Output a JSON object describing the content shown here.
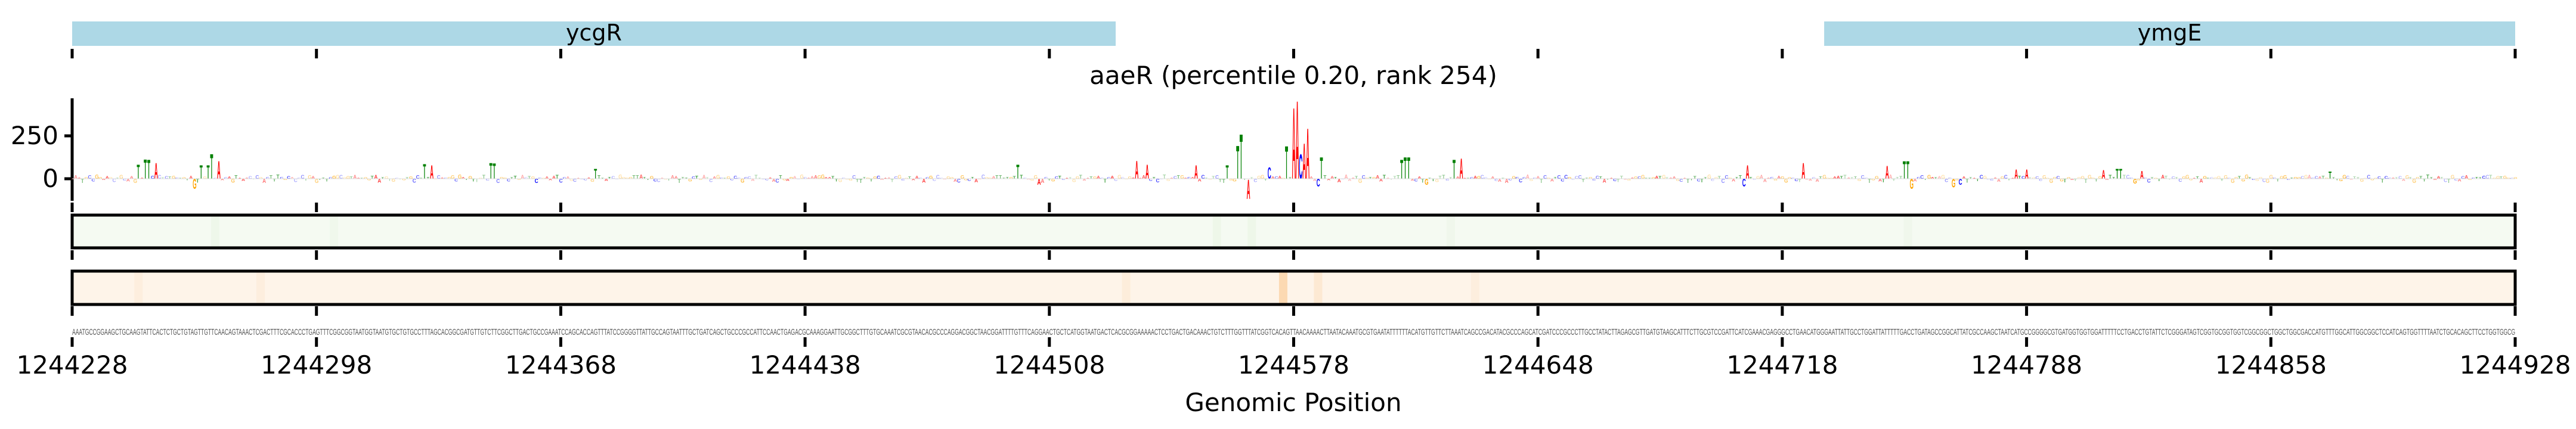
{
  "colors": {
    "A": "#ff0000",
    "C": "#0000ff",
    "G": "#ffa500",
    "T": "#008000",
    "gene": "#add8e6",
    "heatmap_1_base": "#f5faf2",
    "heatmap_1_strong": "#e3f2dd",
    "heatmap_2_base": "#fef4e9",
    "heatmap_2_strong": "#fcd9b2"
  },
  "genes": [
    {
      "name": "ycgR",
      "start": 1244228,
      "end": 1244527
    },
    {
      "name": "ymgE",
      "start": 1244730,
      "end": 1244928
    }
  ],
  "chart_data": {
    "type": "sequence-logo",
    "title": "aaeR (percentile 0.20, rank 254)",
    "xlabel": "Genomic Position",
    "ylabel": "",
    "xlim": [
      1244228,
      1244928
    ],
    "xticks": [
      "1244228",
      "1244298",
      "1244368",
      "1244438",
      "1244508",
      "1244578",
      "1244648",
      "1244718",
      "1244788",
      "1244858",
      "1244928"
    ],
    "ylim": [
      -105,
      480
    ],
    "yticks": [
      "0",
      "250"
    ],
    "sequence": "AAATGCCGGAAGCTGCAAGTATTCACTCTGCTGTAGTTGTTCAACAGTAAACTCGACTTTCGCACCCTGAGTTTCGGCGGTAATGGTAATGTGCTGTGCCTTTAGCACGGCGATGTTGTCTTCGGCTTGACTGCCGAAATCCAGCACCAGTTTATCCGGGGTTATTGCCAGTAATTTGCTGATCAGCTGCCCGCCATTCCAACTGAGACGCAAAGGAATTGCGGCTTTGTGCAAATCGCGTAACACGCCCAGGACGGCTAACGGATTTTGTTTCAGGAACTGCTCATGGTAATGACTCACGCGGAAAAACTCCTGACTGACAAACTGTCTTTGGTTTATCGGTCACAGTTAACAAAACTTAATACAAATGCGTGAATATTTTTTACATGTTGTTCTTAAATCAGCCGACATACGCCCAGCATCGATCCCGCCCTTGCCTATACTTAGAGCGTTGATGTAAGCATTTCTTGCGTCCGATTCATCGAAACGAGGGCCTGAACATGGGAATTATTGCCTGGATTATTTTTGACCTGATAGCCGGCATTATCGCCAAGCTAATCATGCCGGGGCGTGATGGTGGTGGATTTTTCCTGACCTGTATTCTCGGGATAGTCGGTGCGGTGGTCGGCGGCTGGCTGGCGACCATGTTTGGCATTGGCGGCTCCATCAGTGGTTTTAATCTGCACAGCTTCCTGGTGGCG",
    "peaks": [
      {
        "pos": 1244247,
        "base": "T",
        "value": 85
      },
      {
        "pos": 1244249,
        "base": "T",
        "value": 116
      },
      {
        "pos": 1244250,
        "base": "T",
        "value": 113
      },
      {
        "pos": 1244252,
        "base": "A",
        "value": 95
      },
      {
        "pos": 1244263,
        "base": "G",
        "value": -60
      },
      {
        "pos": 1244265,
        "base": "T",
        "value": 82
      },
      {
        "pos": 1244267,
        "base": "T",
        "value": 82
      },
      {
        "pos": 1244268,
        "base": "T",
        "value": 148
      },
      {
        "pos": 1244270,
        "base": "A",
        "value": 106
      },
      {
        "pos": 1244329,
        "base": "T",
        "value": 88
      },
      {
        "pos": 1244331,
        "base": "A",
        "value": 82
      },
      {
        "pos": 1244348,
        "base": "T",
        "value": 95
      },
      {
        "pos": 1244349,
        "base": "T",
        "value": 92
      },
      {
        "pos": 1244361,
        "base": "C",
        "value": -25
      },
      {
        "pos": 1244378,
        "base": "T",
        "value": 60
      },
      {
        "pos": 1244499,
        "base": "T",
        "value": 85
      },
      {
        "pos": 1244505,
        "base": "A",
        "value": -35
      },
      {
        "pos": 1244533,
        "base": "A",
        "value": 109
      },
      {
        "pos": 1244536,
        "base": "A",
        "value": 85
      },
      {
        "pos": 1244550,
        "base": "A",
        "value": 82
      },
      {
        "pos": 1244559,
        "base": "T",
        "value": 82
      },
      {
        "pos": 1244562,
        "base": "T",
        "value": 200
      },
      {
        "pos": 1244563,
        "base": "T",
        "value": 271
      },
      {
        "pos": 1244565,
        "base": "A",
        "value": -116
      },
      {
        "pos": 1244571,
        "base": "C",
        "value": 70
      },
      {
        "pos": 1244576,
        "base": "T",
        "value": 197
      },
      {
        "pos": 1244578,
        "base": "A",
        "value": 430
      },
      {
        "pos": 1244579,
        "base": "A",
        "value": 472
      },
      {
        "pos": 1244580,
        "base": "C",
        "value": 150
      },
      {
        "pos": 1244581,
        "base": "A",
        "value": 215
      },
      {
        "pos": 1244582,
        "base": "A",
        "value": 306
      },
      {
        "pos": 1244585,
        "base": "C",
        "value": -46
      },
      {
        "pos": 1244586,
        "base": "T",
        "value": 130
      },
      {
        "pos": 1244609,
        "base": "T",
        "value": 113
      },
      {
        "pos": 1244610,
        "base": "T",
        "value": 130
      },
      {
        "pos": 1244611,
        "base": "T",
        "value": 130
      },
      {
        "pos": 1244616,
        "base": "G",
        "value": -35
      },
      {
        "pos": 1244624,
        "base": "T",
        "value": 113
      },
      {
        "pos": 1244626,
        "base": "A",
        "value": 123
      },
      {
        "pos": 1244707,
        "base": "C",
        "value": -46
      },
      {
        "pos": 1244708,
        "base": "A",
        "value": 82
      },
      {
        "pos": 1244724,
        "base": "A",
        "value": 95
      },
      {
        "pos": 1244748,
        "base": "A",
        "value": 78
      },
      {
        "pos": 1244753,
        "base": "T",
        "value": 106
      },
      {
        "pos": 1244754,
        "base": "T",
        "value": 106
      },
      {
        "pos": 1244755,
        "base": "G",
        "value": -60
      },
      {
        "pos": 1244767,
        "base": "G",
        "value": -50
      },
      {
        "pos": 1244769,
        "base": "C",
        "value": -35
      },
      {
        "pos": 1244785,
        "base": "A",
        "value": 56
      },
      {
        "pos": 1244788,
        "base": "A",
        "value": 56
      },
      {
        "pos": 1244810,
        "base": "A",
        "value": 53
      },
      {
        "pos": 1244814,
        "base": "T",
        "value": 60
      },
      {
        "pos": 1244815,
        "base": "T",
        "value": 60
      },
      {
        "pos": 1244819,
        "base": "G",
        "value": -28
      },
      {
        "pos": 1244821,
        "base": "A",
        "value": 46
      },
      {
        "pos": 1244875,
        "base": "T",
        "value": 43
      }
    ],
    "heatmap_1_highlights": [
      {
        "pos": 1244269,
        "intensity": 0.35
      },
      {
        "pos": 1244303,
        "intensity": 0.25
      },
      {
        "pos": 1244556,
        "intensity": 0.4
      },
      {
        "pos": 1244566,
        "intensity": 0.4
      },
      {
        "pos": 1244623,
        "intensity": 0.3
      },
      {
        "pos": 1244754,
        "intensity": 0.3
      }
    ],
    "heatmap_2_highlights": [
      {
        "pos": 1244247,
        "intensity": 0.2
      },
      {
        "pos": 1244282,
        "intensity": 0.2
      },
      {
        "pos": 1244530,
        "intensity": 0.25
      },
      {
        "pos": 1244575,
        "intensity": 1.0
      },
      {
        "pos": 1244585,
        "intensity": 0.4
      },
      {
        "pos": 1244630,
        "intensity": 0.2
      }
    ]
  }
}
